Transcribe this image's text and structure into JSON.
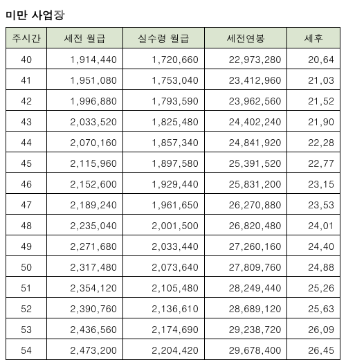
{
  "title": "미만 사업장",
  "table": {
    "header_bg": "#dbe5d0",
    "columns": [
      "주시간",
      "세전 월급",
      "실수령 월급",
      "세전연봉",
      "세후"
    ],
    "rows": [
      [
        "40",
        "1,914,440",
        "1,720,660",
        "22,973,280",
        "20,64"
      ],
      [
        "41",
        "1,951,080",
        "1,753,040",
        "23,412,960",
        "21,03"
      ],
      [
        "42",
        "1,996,880",
        "1,793,590",
        "23,962,560",
        "21,52"
      ],
      [
        "43",
        "2,033,520",
        "1,825,480",
        "24,402,240",
        "21,90"
      ],
      [
        "44",
        "2,070,160",
        "1,857,340",
        "24,841,920",
        "22,28"
      ],
      [
        "45",
        "2,115,960",
        "1,897,580",
        "25,391,520",
        "22,77"
      ],
      [
        "46",
        "2,152,600",
        "1,929,440",
        "25,831,200",
        "23,15"
      ],
      [
        "47",
        "2,189,240",
        "1,961,650",
        "26,270,880",
        "23,53"
      ],
      [
        "48",
        "2,235,040",
        "2,001,500",
        "26,820,480",
        "24,01"
      ],
      [
        "49",
        "2,271,680",
        "2,033,440",
        "27,260,160",
        "24,40"
      ],
      [
        "50",
        "2,317,480",
        "2,073,640",
        "27,809,760",
        "24,88"
      ],
      [
        "51",
        "2,354,120",
        "2,105,480",
        "28,249,440",
        "25,26"
      ],
      [
        "52",
        "2,390,760",
        "2,136,610",
        "28,689,120",
        "25,63"
      ],
      [
        "53",
        "2,436,560",
        "2,174,690",
        "29,238,720",
        "26,09"
      ],
      [
        "54",
        "2,473,200",
        "2,204,420",
        "29,678,400",
        "26,45"
      ]
    ]
  }
}
